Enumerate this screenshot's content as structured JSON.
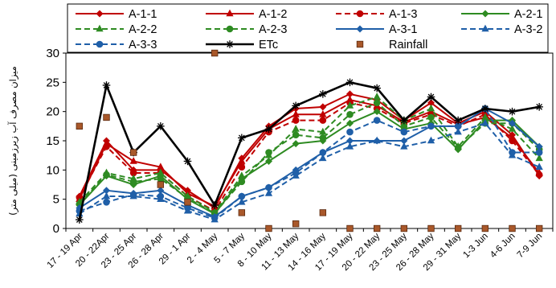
{
  "chart_data": {
    "type": "line",
    "title": "",
    "xlabel": "",
    "ylabel": "میزان مصرف آب زیرزمینی (میلی متر)",
    "ylim": [
      0,
      30
    ],
    "yticks": [
      0,
      5,
      10,
      15,
      20,
      25,
      30
    ],
    "grid": false,
    "legend_position": "top",
    "categories": [
      "17 - 19 Apr",
      "20 - 22Apr",
      "23 - 25 Apr",
      "26 - 28 Apr",
      "29 - 1 Apr",
      "2 - 4 May",
      "5 - 7 May",
      "8 - 10 May",
      "11 - 13 May",
      "14 - 16 May",
      "17 - 19 May",
      "20 - 22 May",
      "23 - 25 May",
      "26 - 28 May",
      "29 - 31 May",
      "1-3 Jun",
      "4-6 Jun",
      "7-9 Jun"
    ],
    "series": [
      {
        "name": "A-1-1",
        "color": "#c00000",
        "dash": "solid",
        "marker": "diamond",
        "values": [
          5.5,
          15.0,
          10.0,
          10.0,
          6.5,
          3.5,
          12.0,
          17.5,
          20.5,
          20.8,
          23.0,
          22.0,
          18.5,
          21.5,
          18.0,
          20.0,
          16.0,
          9.0
        ]
      },
      {
        "name": "A-1-2",
        "color": "#c00000",
        "dash": "solid",
        "marker": "triangle",
        "values": [
          5.0,
          14.5,
          11.5,
          10.5,
          6.0,
          3.8,
          11.5,
          17.0,
          19.5,
          19.5,
          22.0,
          21.0,
          18.2,
          20.0,
          17.8,
          19.0,
          15.5,
          9.5
        ]
      },
      {
        "name": "A-1-3",
        "color": "#c00000",
        "dash": "dashed",
        "marker": "circle",
        "values": [
          5.3,
          14.0,
          9.5,
          9.5,
          5.5,
          3.0,
          10.5,
          16.5,
          18.5,
          18.5,
          21.5,
          20.5,
          18.0,
          19.5,
          17.5,
          19.5,
          15.0,
          9.2
        ]
      },
      {
        "name": "A-2-1",
        "color": "#2e8b22",
        "dash": "solid",
        "marker": "diamond",
        "values": [
          4.0,
          9.0,
          7.5,
          9.0,
          5.0,
          2.5,
          8.5,
          11.5,
          14.5,
          15.0,
          18.0,
          20.0,
          17.0,
          18.0,
          13.5,
          18.5,
          18.5,
          14.0
        ]
      },
      {
        "name": "A-2-2",
        "color": "#2e8b22",
        "dash": "dashed",
        "marker": "triangle",
        "values": [
          4.5,
          9.5,
          8.5,
          9.5,
          5.5,
          2.8,
          9.0,
          12.5,
          17.0,
          16.5,
          21.0,
          22.5,
          18.5,
          20.5,
          14.0,
          19.0,
          17.0,
          12.0
        ]
      },
      {
        "name": "A-2-3",
        "color": "#2e8b22",
        "dash": "dashed",
        "marker": "circle",
        "values": [
          4.2,
          9.2,
          8.0,
          8.5,
          5.2,
          2.6,
          8.0,
          13.0,
          16.0,
          15.5,
          19.5,
          21.5,
          17.5,
          19.0,
          13.8,
          18.0,
          18.0,
          13.5
        ]
      },
      {
        "name": "A-3-1",
        "color": "#1f5fa8",
        "dash": "solid",
        "marker": "diamond",
        "values": [
          3.5,
          6.5,
          6.0,
          6.5,
          4.0,
          2.0,
          5.5,
          7.0,
          10.0,
          13.0,
          15.0,
          15.0,
          15.0,
          17.5,
          17.5,
          20.5,
          18.0,
          14.0
        ]
      },
      {
        "name": "A-3-2",
        "color": "#1f5fa8",
        "dash": "dashed",
        "marker": "triangle",
        "values": [
          2.5,
          5.5,
          5.5,
          5.0,
          3.0,
          1.5,
          4.5,
          6.0,
          9.0,
          12.0,
          14.0,
          15.0,
          14.0,
          15.0,
          16.5,
          18.0,
          12.5,
          10.5
        ]
      },
      {
        "name": "A-3-3",
        "color": "#1f5fa8",
        "dash": "dashed",
        "marker": "circle",
        "values": [
          3.0,
          4.5,
          5.8,
          5.5,
          3.5,
          1.8,
          5.5,
          7.0,
          9.5,
          13.0,
          16.5,
          18.5,
          16.5,
          17.5,
          17.5,
          20.5,
          13.0,
          13.0
        ]
      },
      {
        "name": "ETc",
        "color": "#000000",
        "dash": "solid",
        "marker": "star",
        "values": [
          1.5,
          24.5,
          13.0,
          17.5,
          11.5,
          4.0,
          15.5,
          17.0,
          21.0,
          23.0,
          25.0,
          24.0,
          18.5,
          22.5,
          18.5,
          20.5,
          20.0,
          20.8
        ]
      },
      {
        "name": "Rainfall",
        "color": "#a9582a",
        "dash": "none",
        "marker": "square",
        "values": [
          17.5,
          19.0,
          13.0,
          7.5,
          4.5,
          30.0,
          2.7,
          0.0,
          0.8,
          2.7,
          0.0,
          0.0,
          0.0,
          0.0,
          0.0,
          0.0,
          0.0,
          0.0
        ]
      }
    ]
  }
}
